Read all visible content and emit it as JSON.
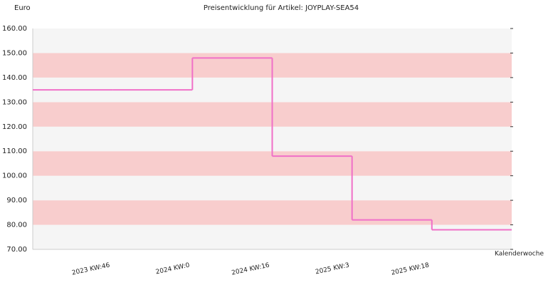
{
  "chart_data": {
    "type": "step",
    "title": "Preisentwicklung für Artikel: JOYPLAY-SEA54",
    "y_label": "Euro",
    "x_label": "Kalenderwoche",
    "categories": [
      null,
      "2023 KW:46",
      "2024 KW:0",
      "2024 KW:16",
      "2025 KW:3",
      "2025 KW:18"
    ],
    "values": [
      135,
      135,
      148,
      108,
      82,
      78
    ],
    "color": "#f070c8",
    "band_colors": [
      "#f5f5f5",
      "#f8cdcd"
    ],
    "ylim": [
      70,
      160
    ],
    "yticks": [
      {
        "value": 70,
        "label": "70.00"
      },
      {
        "value": 80,
        "label": "80.00"
      },
      {
        "value": 90,
        "label": "90.00"
      },
      {
        "value": 100,
        "label": "100.00"
      },
      {
        "value": 110,
        "label": "110.00"
      },
      {
        "value": 120,
        "label": "120.00"
      },
      {
        "value": 130,
        "label": "130.00"
      },
      {
        "value": 140,
        "label": "140.00"
      },
      {
        "value": 150,
        "label": "150.00"
      },
      {
        "value": 160,
        "label": "160.00"
      }
    ]
  }
}
